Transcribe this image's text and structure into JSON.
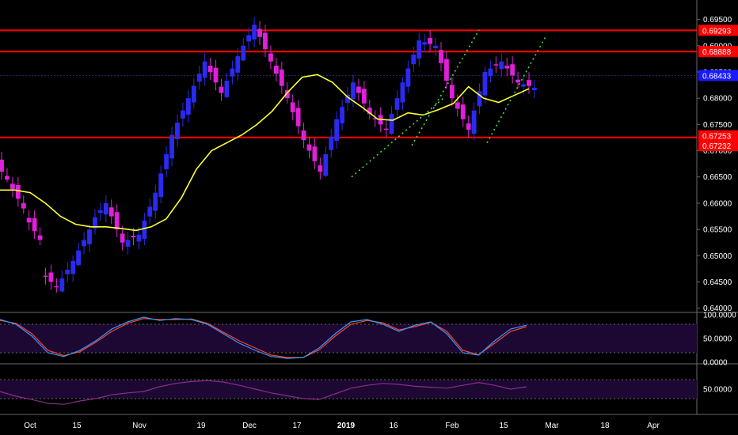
{
  "colors": {
    "background": "#000000",
    "bull": "#2a2af0",
    "bear": "#e020d8",
    "sma": "#ffff33",
    "hline": "#ff0000",
    "trend": "#44dd44",
    "stoch_band": "#1c0833",
    "stoch_k": "#3399ff",
    "stoch_d": "#ff4433",
    "rsi_band": "#1c0833",
    "rsi_line": "#8a2e8a",
    "grid_text": "#ffffff",
    "axis_line": "#6b6b6b"
  },
  "price_axis": {
    "ticks": [
      "0.69500",
      "0.69000",
      "0.68500",
      "0.68000",
      "0.67500",
      "0.67000",
      "0.66500",
      "0.66000",
      "0.65500",
      "0.65000",
      "0.64500",
      "0.64000"
    ]
  },
  "price_labels": [
    {
      "text": "0.69293",
      "value": 0.69293,
      "bg": "#ff0000"
    },
    {
      "text": "0.68888",
      "value": 0.68888,
      "bg": "#ff0000"
    },
    {
      "text": "0.68433",
      "value": 0.68433,
      "bg": "#1a1aff"
    },
    {
      "text": "0.67253",
      "value": 0.67253,
      "bg": "#ff0000"
    },
    {
      "text": "0.67232",
      "value": 0.67232,
      "bg": "#ff0000"
    }
  ],
  "stoch_axis": {
    "ticks": [
      "100.0000",
      "50.0000",
      "0.0000"
    ]
  },
  "rsi_axis": {
    "ticks": [
      "50.0000"
    ]
  },
  "time_axis": {
    "labels": [
      "Oct",
      "15",
      "Nov",
      "19",
      "Dec",
      "17",
      "2019",
      "16",
      "Feb",
      "15",
      "Mar",
      "18",
      "Apr"
    ],
    "bold": [
      "2019"
    ]
  },
  "chart_data": [
    {
      "type": "candlestick",
      "title": "",
      "ylim": [
        0.6395,
        0.6975
      ],
      "horizontal_lines": [
        0.69293,
        0.68888,
        0.67253
      ],
      "current_price": 0.68433,
      "moving_average_shape": [
        0.6625,
        0.6625,
        0.662,
        0.66,
        0.6575,
        0.656,
        0.6555,
        0.6555,
        0.6552,
        0.6548,
        0.6555,
        0.657,
        0.661,
        0.6665,
        0.67,
        0.6715,
        0.673,
        0.675,
        0.6775,
        0.681,
        0.684,
        0.6845,
        0.683,
        0.6802,
        0.6782,
        0.676,
        0.6758,
        0.6772,
        0.6768,
        0.6778,
        0.679,
        0.6822,
        0.68,
        0.6792,
        0.6805,
        0.6818
      ],
      "trend_lines": [
        {
          "from_index": 0,
          "from": 0.665,
          "to_index": 1,
          "to": 0.68
        },
        {
          "from_index": 2,
          "from": 0.671,
          "to_index": 3,
          "to": 0.693
        },
        {
          "from_index": 4,
          "from": 0.6715,
          "to_index": 5,
          "to": 0.692
        }
      ],
      "candles_ohlc_approx": [
        [
          0.669,
          0.67,
          0.664,
          0.6645
        ],
        [
          0.6645,
          0.665,
          0.658,
          0.659
        ],
        [
          0.658,
          0.66,
          0.652,
          0.653
        ],
        [
          0.647,
          0.65,
          0.643,
          0.644
        ],
        [
          0.644,
          0.65,
          0.643,
          0.649
        ],
        [
          0.649,
          0.656,
          0.648,
          0.655
        ],
        [
          0.656,
          0.662,
          0.654,
          0.66
        ],
        [
          0.66,
          0.661,
          0.651,
          0.6525
        ],
        [
          0.6525,
          0.656,
          0.647,
          0.654
        ],
        [
          0.654,
          0.664,
          0.652,
          0.662
        ],
        [
          0.662,
          0.676,
          0.66,
          0.673
        ],
        [
          0.673,
          0.683,
          0.67,
          0.68
        ],
        [
          0.68,
          0.689,
          0.678,
          0.687
        ],
        [
          0.687,
          0.688,
          0.678,
          0.681
        ],
        [
          0.681,
          0.69,
          0.68,
          0.688
        ],
        [
          0.688,
          0.697,
          0.687,
          0.694
        ],
        [
          0.694,
          0.695,
          0.685,
          0.687
        ],
        [
          0.687,
          0.688,
          0.679,
          0.68
        ],
        [
          0.68,
          0.682,
          0.67,
          0.672
        ],
        [
          0.672,
          0.674,
          0.664,
          0.666
        ],
        [
          0.666,
          0.678,
          0.665,
          0.676
        ],
        [
          0.676,
          0.685,
          0.674,
          0.683
        ],
        [
          0.683,
          0.684,
          0.676,
          0.677
        ],
        [
          0.677,
          0.679,
          0.672,
          0.674
        ],
        [
          0.674,
          0.684,
          0.673,
          0.683
        ],
        [
          0.683,
          0.693,
          0.681,
          0.691
        ],
        [
          0.691,
          0.695,
          0.687,
          0.69
        ],
        [
          0.69,
          0.691,
          0.678,
          0.68
        ],
        [
          0.68,
          0.681,
          0.672,
          0.674
        ],
        [
          0.674,
          0.686,
          0.672,
          0.685
        ],
        [
          0.685,
          0.689,
          0.683,
          0.687
        ],
        [
          0.687,
          0.689,
          0.682,
          0.683
        ],
        [
          0.683,
          0.685,
          0.676,
          0.682
        ]
      ]
    },
    {
      "type": "line",
      "name": "stochastic",
      "ylim": [
        0,
        100
      ],
      "band": [
        20,
        80
      ],
      "k": [
        90,
        80,
        55,
        20,
        12,
        25,
        45,
        70,
        85,
        95,
        88,
        92,
        90,
        80,
        60,
        40,
        25,
        12,
        8,
        10,
        30,
        60,
        85,
        90,
        80,
        65,
        78,
        85,
        60,
        20,
        15,
        45,
        70,
        78
      ],
      "d": [
        88,
        82,
        60,
        25,
        14,
        22,
        42,
        65,
        82,
        92,
        90,
        90,
        91,
        82,
        63,
        45,
        30,
        15,
        10,
        10,
        26,
        55,
        80,
        88,
        83,
        68,
        75,
        84,
        65,
        25,
        16,
        40,
        65,
        75
      ]
    },
    {
      "type": "line",
      "name": "rsi",
      "ylim": [
        0,
        100
      ],
      "band": [
        30,
        70
      ],
      "values": [
        45,
        35,
        28,
        20,
        18,
        25,
        30,
        38,
        42,
        45,
        55,
        62,
        66,
        68,
        65,
        58,
        50,
        42,
        36,
        30,
        28,
        40,
        52,
        58,
        62,
        60,
        56,
        54,
        52,
        58,
        64,
        58,
        50,
        55
      ]
    }
  ]
}
